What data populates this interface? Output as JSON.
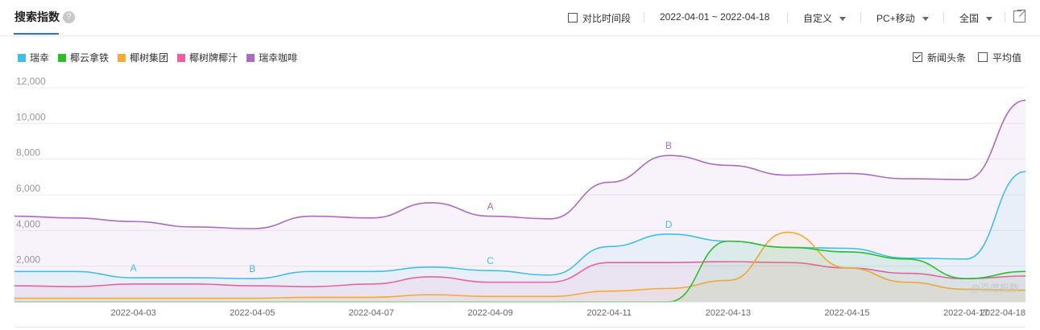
{
  "header": {
    "title": "搜索指数",
    "help_icon": "question-circle-icon",
    "compare_label": "对比时间段",
    "date_range": "2022-04-01 ~ 2022-04-18",
    "period_mode": "自定义",
    "device": "PC+移动",
    "region": "全国",
    "export_icon": "external-link-icon"
  },
  "options": {
    "news_label": "新闻头条",
    "news_checked": true,
    "average_label": "平均值",
    "average_checked": false
  },
  "watermark": "@百度指数",
  "chart_data": {
    "type": "area",
    "x": [
      "2022-04-01",
      "2022-04-02",
      "2022-04-03",
      "2022-04-04",
      "2022-04-05",
      "2022-04-06",
      "2022-04-07",
      "2022-04-08",
      "2022-04-09",
      "2022-04-10",
      "2022-04-11",
      "2022-04-12",
      "2022-04-13",
      "2022-04-14",
      "2022-04-15",
      "2022-04-16",
      "2022-04-17",
      "2022-04-18"
    ],
    "x_tick_labels": [
      "2022-04-03",
      "2022-04-05",
      "2022-04-07",
      "2022-04-09",
      "2022-04-11",
      "2022-04-13",
      "2022-04-15",
      "2022-04-17",
      "2022-04-18"
    ],
    "y_ticks": [
      "12,000",
      "10,000",
      "8,000",
      "6,000",
      "4,000",
      "2,000"
    ],
    "ylim": [
      0,
      12000
    ],
    "grid": true,
    "series": [
      {
        "name": "瑞幸",
        "color": "#3fbfed",
        "values": [
          1700,
          1700,
          1350,
          1350,
          1300,
          1700,
          1700,
          1950,
          1750,
          1500,
          3100,
          3800,
          3400,
          3050,
          3000,
          2450,
          2400,
          7300
        ]
      },
      {
        "name": "椰云拿铁",
        "color": "#2dbd2d",
        "values": [
          0,
          0,
          0,
          0,
          0,
          0,
          0,
          0,
          0,
          0,
          0,
          0,
          3400,
          3050,
          2800,
          2400,
          1300,
          1700
        ]
      },
      {
        "name": "椰树集团",
        "color": "#f7a935",
        "values": [
          200,
          200,
          200,
          200,
          200,
          250,
          250,
          400,
          300,
          300,
          600,
          750,
          1200,
          3900,
          1900,
          1100,
          700,
          650
        ]
      },
      {
        "name": "椰树牌椰汁",
        "color": "#ee5fa2",
        "values": [
          900,
          850,
          1000,
          1000,
          900,
          850,
          1000,
          1400,
          1100,
          1100,
          2200,
          2200,
          2250,
          2200,
          1900,
          1600,
          1300,
          1450
        ]
      },
      {
        "name": "瑞幸咖啡",
        "color": "#ac6bc3",
        "values": [
          4800,
          4700,
          4500,
          4200,
          4100,
          4800,
          4700,
          5550,
          4800,
          4650,
          6700,
          8200,
          7650,
          7100,
          7200,
          6900,
          6850,
          11300
        ]
      }
    ],
    "annotations": [
      {
        "series": "瑞幸",
        "label": "A",
        "x": "2022-04-03"
      },
      {
        "series": "瑞幸",
        "label": "B",
        "x": "2022-04-05"
      },
      {
        "series": "瑞幸",
        "label": "C",
        "x": "2022-04-09"
      },
      {
        "series": "瑞幸",
        "label": "D",
        "x": "2022-04-12"
      },
      {
        "series": "瑞幸咖啡",
        "label": "A",
        "x": "2022-04-09"
      },
      {
        "series": "瑞幸咖啡",
        "label": "B",
        "x": "2022-04-12"
      }
    ]
  }
}
